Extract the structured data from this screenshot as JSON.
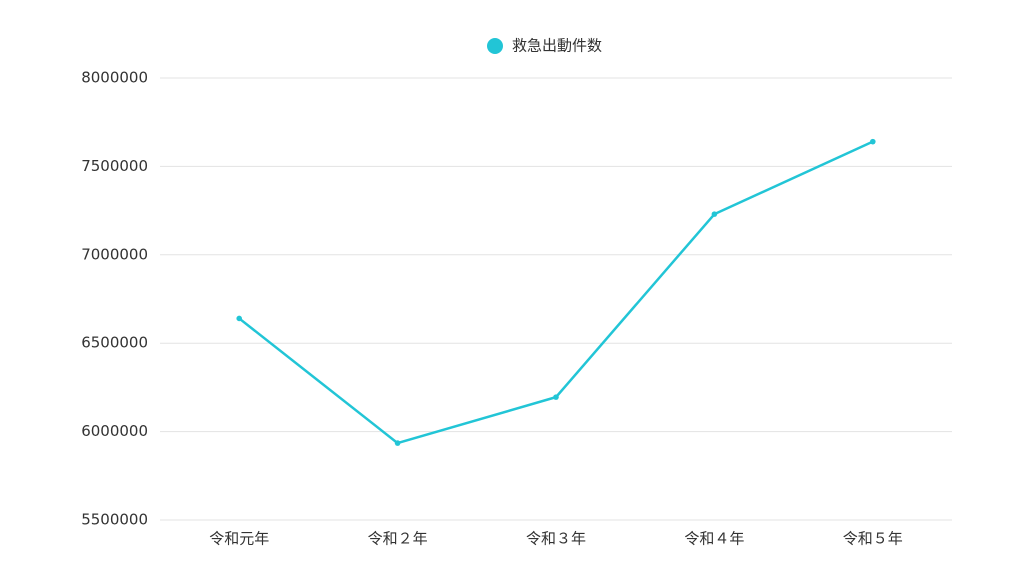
{
  "chart_data": {
    "type": "line",
    "categories": [
      "令和元年",
      "令和２年",
      "令和３年",
      "令和４年",
      "令和５年"
    ],
    "series": [
      {
        "name": "救急出動件数",
        "color": "#22c5d6",
        "values": [
          6640000,
          5935000,
          6195000,
          7230000,
          7640000
        ]
      }
    ],
    "ylim": [
      5500000,
      8000000
    ],
    "yticks": [
      5500000,
      6000000,
      6500000,
      7000000,
      7500000,
      8000000
    ],
    "grid": true,
    "legend": "top"
  }
}
